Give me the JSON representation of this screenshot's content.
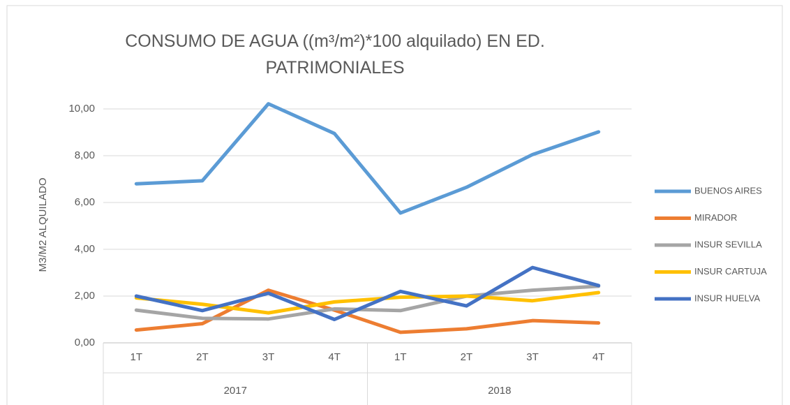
{
  "chart_data": {
    "type": "line",
    "title": "CONSUMO DE AGUA ((m³/m²)*100 alquilado) EN ED. PATRIMONIALES",
    "y_label": "M3/M2 ALQUILADO",
    "categories": [
      "1T",
      "2T",
      "3T",
      "4T",
      "1T",
      "2T",
      "3T",
      "4T"
    ],
    "groups": [
      "2017",
      "2018"
    ],
    "ylim": [
      0,
      10
    ],
    "yticks": [
      {
        "value": 0,
        "label": "0,00"
      },
      {
        "value": 2,
        "label": "2,00"
      },
      {
        "value": 4,
        "label": "4,00"
      },
      {
        "value": 6,
        "label": "6,00"
      },
      {
        "value": 8,
        "label": "8,00"
      },
      {
        "value": 10,
        "label": "10,00"
      }
    ],
    "grid": true,
    "legend": "right",
    "series": [
      {
        "name": "BUENOS AIRES",
        "color": "#5b9bd5",
        "values": [
          6.8,
          6.93,
          10.22,
          8.95,
          5.55,
          6.65,
          8.05,
          9.02
        ]
      },
      {
        "name": "MIRADOR",
        "color": "#ed7d31",
        "values": [
          0.55,
          0.82,
          2.25,
          1.4,
          0.45,
          0.6,
          0.95,
          0.85
        ]
      },
      {
        "name": "INSUR SEVILLA",
        "color": "#a5a5a5",
        "values": [
          1.4,
          1.05,
          1.02,
          1.45,
          1.38,
          2.0,
          2.25,
          2.42
        ]
      },
      {
        "name": "INSUR CARTUJA",
        "color": "#ffc000",
        "values": [
          1.92,
          1.65,
          1.28,
          1.75,
          1.95,
          2.0,
          1.8,
          2.15
        ]
      },
      {
        "name": "INSUR HUELVA",
        "color": "#4472c4",
        "values": [
          2.0,
          1.38,
          2.12,
          1.0,
          2.2,
          1.58,
          3.22,
          2.45
        ]
      }
    ]
  }
}
